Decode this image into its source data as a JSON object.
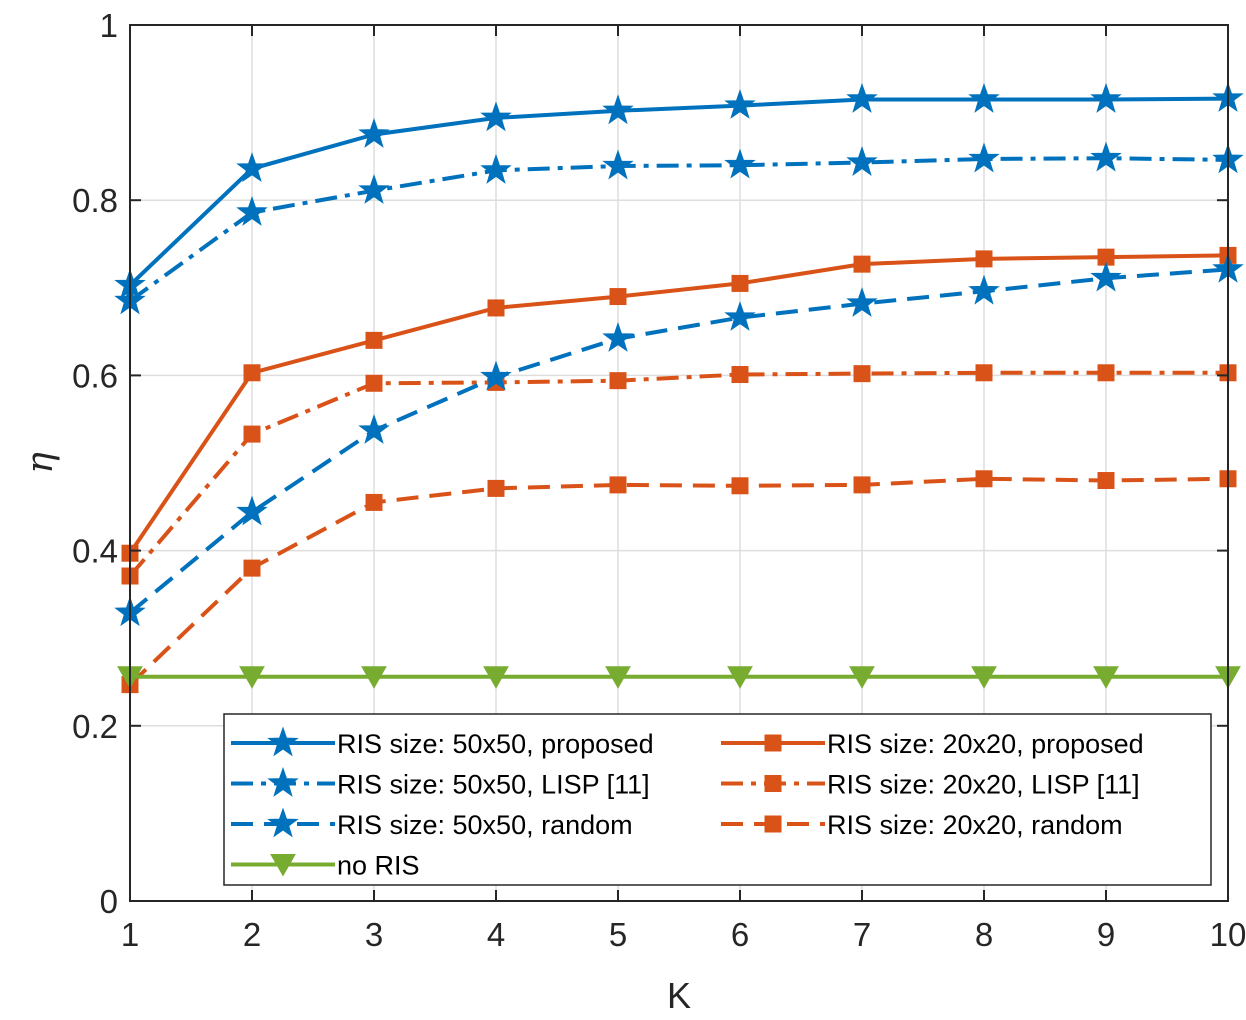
{
  "chart_data": {
    "type": "line",
    "title": "",
    "xlabel": "K",
    "ylabel": "η",
    "xlim": [
      1,
      10
    ],
    "ylim": [
      0,
      1
    ],
    "x": [
      1,
      2,
      3,
      4,
      5,
      6,
      7,
      8,
      9,
      10
    ],
    "xticks": [
      "1",
      "2",
      "3",
      "4",
      "5",
      "6",
      "7",
      "8",
      "9",
      "10"
    ],
    "yticks": [
      "0",
      "0.2",
      "0.4",
      "0.6",
      "0.8",
      "1"
    ],
    "grid": true,
    "legend_position": "bottom-right",
    "series": [
      {
        "name": "RIS size: 50x50, proposed",
        "color": "#0072BD",
        "dash": "solid",
        "marker": "star",
        "values": [
          0.703,
          0.836,
          0.875,
          0.894,
          0.902,
          0.908,
          0.915,
          0.915,
          0.915,
          0.916
        ]
      },
      {
        "name": "RIS size: 20x20, proposed",
        "color": "#D95319",
        "dash": "solid",
        "marker": "square",
        "values": [
          0.397,
          0.603,
          0.64,
          0.677,
          0.69,
          0.705,
          0.727,
          0.733,
          0.735,
          0.737
        ]
      },
      {
        "name": "RIS size: 50x50, LISP [11]",
        "color": "#0072BD",
        "dash": "dashdot",
        "marker": "star",
        "values": [
          0.685,
          0.786,
          0.811,
          0.834,
          0.839,
          0.84,
          0.843,
          0.847,
          0.848,
          0.846
        ]
      },
      {
        "name": "RIS size: 20x20, LISP [11]",
        "color": "#D95319",
        "dash": "dashdot",
        "marker": "square",
        "values": [
          0.371,
          0.533,
          0.591,
          0.592,
          0.594,
          0.601,
          0.602,
          0.603,
          0.603,
          0.603
        ]
      },
      {
        "name": "RIS size: 50x50, random",
        "color": "#0072BD",
        "dash": "dashed",
        "marker": "star",
        "values": [
          0.329,
          0.444,
          0.537,
          0.598,
          0.642,
          0.666,
          0.682,
          0.696,
          0.711,
          0.721
        ]
      },
      {
        "name": "RIS size: 20x20, random",
        "color": "#D95319",
        "dash": "dashed",
        "marker": "square",
        "values": [
          0.247,
          0.38,
          0.455,
          0.471,
          0.475,
          0.474,
          0.475,
          0.482,
          0.48,
          0.482
        ]
      },
      {
        "name": "no RIS",
        "color": "#77AC30",
        "dash": "solid",
        "marker": "triangle-down",
        "values": [
          0.256,
          0.256,
          0.256,
          0.256,
          0.256,
          0.256,
          0.256,
          0.256,
          0.256,
          0.256
        ]
      }
    ]
  }
}
